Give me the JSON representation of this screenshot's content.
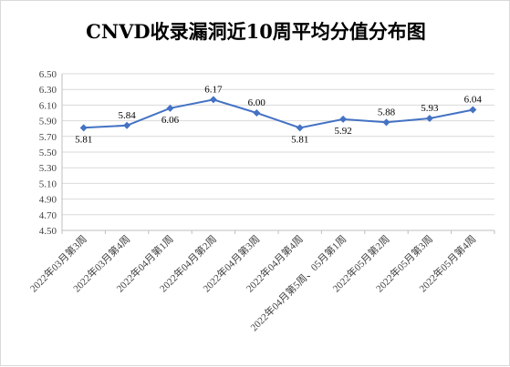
{
  "chart_data": {
    "type": "line",
    "title": "CNVD收录漏洞近10周平均分值分布图",
    "categories": [
      "2022年03月第3周",
      "2022年03月第4周",
      "2022年04月第1周",
      "2022年04月第2周",
      "2022年04月第3周",
      "2022年04月第4周",
      "2022年04月第5周、05月第1周",
      "2022年05月第2周",
      "2022年05月第3周",
      "2022年05月第4周"
    ],
    "values": [
      5.81,
      5.84,
      6.06,
      6.17,
      6.0,
      5.81,
      5.92,
      5.88,
      5.93,
      6.04
    ],
    "value_labels": [
      "5.81",
      "5.84",
      "6.06",
      "6.17",
      "6.00",
      "5.81",
      "5.92",
      "5.88",
      "5.93",
      "6.04"
    ],
    "ylim": [
      4.5,
      6.5
    ],
    "yticks": [
      "4.50",
      "4.70",
      "4.90",
      "5.10",
      "5.30",
      "5.50",
      "5.70",
      "5.90",
      "6.10",
      "6.30",
      "6.50"
    ],
    "grid": true,
    "legend": "none",
    "line_color": "#4472c4"
  }
}
